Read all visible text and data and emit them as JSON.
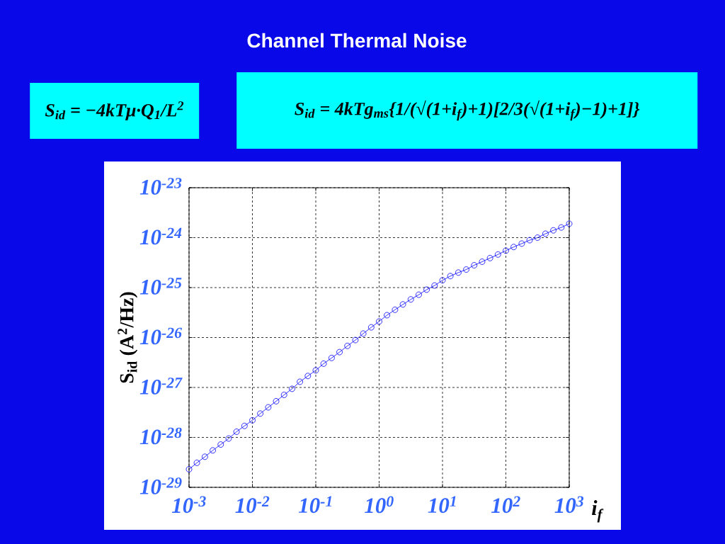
{
  "chart_data": {
    "type": "line",
    "title": "Channel Thermal Noise",
    "annotations": [
      "S$_{id}$ = −4kTμ·Q$_{1}$/L$^{2}$",
      "S$_{id}$ = 4kTg$_{ms}${1/(√(1+i$_{f}$)+1)[2/3(√(1+i$_{f}$)−1)+1]}"
    ],
    "xlabel": "i$_{f}$",
    "ylabel": "S$_{id}$ (A$^{2}$/Hz)",
    "x": [
      0.001,
      0.00133,
      0.00178,
      0.00237,
      0.00316,
      0.00422,
      0.00562,
      0.0075,
      0.01,
      0.0133,
      0.0178,
      0.0237,
      0.0316,
      0.0422,
      0.0562,
      0.075,
      0.1,
      0.133,
      0.178,
      0.237,
      0.316,
      0.422,
      0.562,
      0.75,
      1,
      1.33,
      1.78,
      2.37,
      3.16,
      4.22,
      5.62,
      7.5,
      10,
      13.3,
      17.8,
      23.7,
      31.6,
      42.2,
      56.2,
      75,
      100,
      133,
      178,
      237,
      316,
      422,
      562,
      750,
      1000
    ],
    "values": [
      2.3e-29,
      3.1e-29,
      4.1e-29,
      5.5e-29,
      7.2e-29,
      9.5e-29,
      1.3e-28,
      1.7e-28,
      2.2e-28,
      3e-28,
      4e-28,
      5.3e-28,
      7.1e-28,
      9.4e-28,
      1.3e-27,
      1.7e-27,
      2.2e-27,
      3e-27,
      3.9e-27,
      5.1e-27,
      6.8e-27,
      8.9e-27,
      1.2e-26,
      1.6e-26,
      2.1e-26,
      2.8e-26,
      3.6e-26,
      4.6e-26,
      5.8e-26,
      7.2e-26,
      9.1e-26,
      1.1e-25,
      1.4e-25,
      1.7e-25,
      2e-25,
      2.3e-25,
      2.8e-25,
      3.3e-25,
      3.9e-25,
      4.6e-25,
      5.5e-25,
      6.5e-25,
      7.6e-25,
      8.9e-25,
      1e-24,
      1.2e-24,
      1.4e-24,
      1.6e-24,
      1.9e-24
    ],
    "color": "#0000ff",
    "marker": "circle",
    "log": "xy",
    "grid": true,
    "xlim": [
      0.001,
      1000
    ],
    "ylim": [
      1e-29,
      1e-23
    ],
    "xticks": [
      {
        "value": 0.001,
        "label": "10$^{-3}$"
      },
      {
        "value": 0.01,
        "label": "10$^{-2}$"
      },
      {
        "value": 0.1,
        "label": "10$^{-1}$"
      },
      {
        "value": 1,
        "label": "10$^{0}$"
      },
      {
        "value": 10,
        "label": "10$^{1}$"
      },
      {
        "value": 100,
        "label": "10$^{2}$"
      },
      {
        "value": 1000,
        "label": "10$^{3}$"
      }
    ],
    "yticks": [
      {
        "value": 1e-29,
        "label": "10$^{-29}$"
      },
      {
        "value": 1e-28,
        "label": "10$^{-28}$"
      },
      {
        "value": 1e-27,
        "label": "10$^{-27}$"
      },
      {
        "value": 1e-26,
        "label": "10$^{-26}$"
      },
      {
        "value": 1e-25,
        "label": "10$^{-25}$"
      },
      {
        "value": 1e-24,
        "label": "10$^{-24}$"
      },
      {
        "value": 1e-23,
        "label": "10$^{-23}$"
      }
    ]
  }
}
